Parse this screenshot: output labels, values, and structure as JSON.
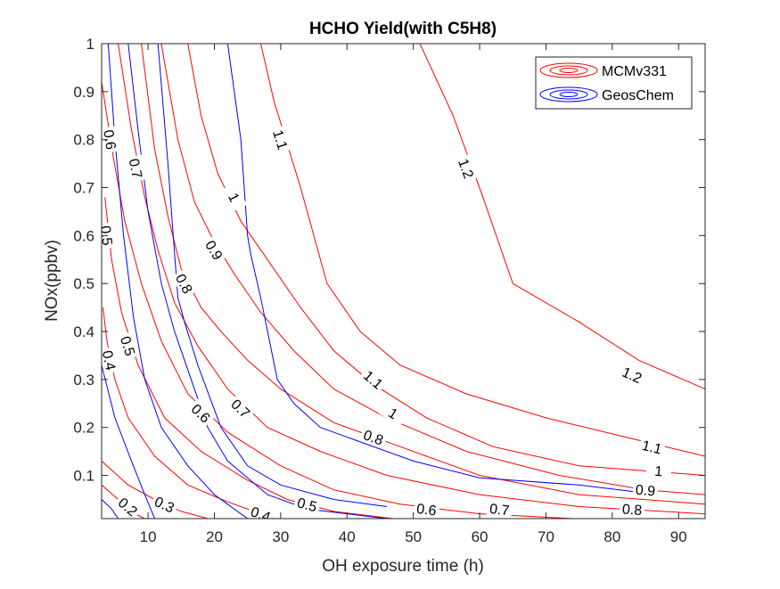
{
  "chart_data": {
    "type": "contour",
    "title": "HCHO Yield(with C5H8)",
    "xlabel": "OH exposure time (h)",
    "ylabel": "NOx(ppbv)",
    "xlim": [
      3,
      94
    ],
    "ylim": [
      0.01,
      1.0
    ],
    "xticks": [
      10,
      20,
      30,
      40,
      50,
      60,
      70,
      80,
      90
    ],
    "yticks": [
      0.1,
      0.2,
      0.3,
      0.4,
      0.5,
      0.6,
      0.7,
      0.8,
      0.9,
      1
    ],
    "yticklabels": [
      "0.1",
      "0.2",
      "0.3",
      "0.4",
      "0.5",
      "0.6",
      "0.7",
      "0.8",
      "0.9",
      "1"
    ],
    "grid": false,
    "legend": {
      "placement": "top-right",
      "entries": [
        "MCMv331",
        "GeosChem"
      ]
    },
    "series": [
      {
        "name": "MCMv331",
        "color": "#ff0000",
        "contours": [
          {
            "level": "0.2",
            "points": [
              [
                3.0,
                0.08
              ],
              [
                5.5,
                0.05
              ],
              [
                8.0,
                0.02
              ],
              [
                9.5,
                0.01
              ]
            ],
            "labels": [
              [
                7.0,
                0.035
              ]
            ]
          },
          {
            "level": "0.3",
            "points": [
              [
                3.0,
                0.13
              ],
              [
                7.0,
                0.08
              ],
              [
                11.0,
                0.05
              ],
              [
                15.0,
                0.025
              ],
              [
                19.0,
                0.01
              ]
            ],
            "labels": [
              [
                12.5,
                0.04
              ]
            ]
          },
          {
            "level": "0.4",
            "points": [
              [
                3.2,
                0.45
              ],
              [
                3.8,
                0.38
              ],
              [
                5.0,
                0.3
              ],
              [
                7.0,
                0.22
              ],
              [
                11.0,
                0.14
              ],
              [
                16.0,
                0.08
              ],
              [
                22.0,
                0.045
              ],
              [
                26.0,
                0.025
              ],
              [
                29.0,
                0.01
              ]
            ],
            "labels": [
              [
                4.2,
                0.34
              ],
              [
                27.0,
                0.02
              ]
            ]
          },
          {
            "level": "0.5",
            "points": [
              [
                3.5,
                0.68
              ],
              [
                4.5,
                0.55
              ],
              [
                6.0,
                0.44
              ],
              [
                8.5,
                0.33
              ],
              [
                12.5,
                0.22
              ],
              [
                18.0,
                0.15
              ],
              [
                25.0,
                0.09
              ],
              [
                31.0,
                0.05
              ],
              [
                38.0,
                0.025
              ],
              [
                47.0,
                0.01
              ]
            ],
            "labels": [
              [
                3.8,
                0.6
              ],
              [
                7.0,
                0.37
              ],
              [
                34.0,
                0.04
              ]
            ]
          },
          {
            "level": "0.6",
            "points": [
              [
                3.0,
                0.92
              ],
              [
                4.8,
                0.76
              ],
              [
                6.5,
                0.63
              ],
              [
                9.0,
                0.5
              ],
              [
                12.0,
                0.38
              ],
              [
                16.0,
                0.27
              ],
              [
                22.0,
                0.19
              ],
              [
                30.0,
                0.12
              ],
              [
                38.0,
                0.07
              ],
              [
                48.0,
                0.04
              ],
              [
                60.0,
                0.02
              ],
              [
                74.0,
                0.01
              ]
            ],
            "labels": [
              [
                4.3,
                0.8
              ],
              [
                18.0,
                0.23
              ],
              [
                52.0,
                0.03
              ]
            ]
          },
          {
            "level": "0.7",
            "points": [
              [
                5.5,
                1.0
              ],
              [
                7.5,
                0.82
              ],
              [
                9.5,
                0.68
              ],
              [
                11.5,
                0.57
              ],
              [
                14.0,
                0.46
              ],
              [
                17.5,
                0.37
              ],
              [
                22.0,
                0.28
              ],
              [
                28.0,
                0.2
              ],
              [
                36.0,
                0.15
              ],
              [
                46.0,
                0.1
              ],
              [
                60.0,
                0.06
              ],
              [
                75.0,
                0.035
              ],
              [
                94.0,
                0.02
              ]
            ],
            "labels": [
              [
                8.2,
                0.74
              ],
              [
                24.0,
                0.24
              ],
              [
                63.0,
                0.03
              ]
            ]
          },
          {
            "level": "0.8",
            "points": [
              [
                9.0,
                1.0
              ],
              [
                11.0,
                0.78
              ],
              [
                13.0,
                0.64
              ],
              [
                15.0,
                0.53
              ],
              [
                18.0,
                0.45
              ],
              [
                21.0,
                0.4
              ],
              [
                25.0,
                0.34
              ],
              [
                30.0,
                0.28
              ],
              [
                38.0,
                0.21
              ],
              [
                48.0,
                0.16
              ],
              [
                60.0,
                0.1
              ],
              [
                75.0,
                0.06
              ],
              [
                94.0,
                0.04
              ]
            ],
            "labels": [
              [
                15.5,
                0.5
              ],
              [
                44.0,
                0.18
              ],
              [
                83.0,
                0.03
              ]
            ]
          },
          {
            "level": "0.9",
            "points": [
              [
                12.0,
                1.0
              ],
              [
                14.5,
                0.8
              ],
              [
                17.0,
                0.67
              ],
              [
                19.5,
                0.6
              ],
              [
                23.0,
                0.52
              ],
              [
                27.0,
                0.44
              ],
              [
                32.0,
                0.36
              ],
              [
                38.0,
                0.28
              ],
              [
                46.0,
                0.22
              ],
              [
                58.0,
                0.15
              ],
              [
                72.0,
                0.1
              ],
              [
                85.0,
                0.07
              ],
              [
                94.0,
                0.06
              ]
            ],
            "labels": [
              [
                20.0,
                0.57
              ],
              [
                85.0,
                0.07
              ]
            ]
          },
          {
            "level": "1",
            "points": [
              [
                16.0,
                1.0
              ],
              [
                18.0,
                0.85
              ],
              [
                20.5,
                0.73
              ],
              [
                24.0,
                0.63
              ],
              [
                28.0,
                0.55
              ],
              [
                33.0,
                0.45
              ],
              [
                38.0,
                0.36
              ],
              [
                44.0,
                0.29
              ],
              [
                52.0,
                0.22
              ],
              [
                62.0,
                0.16
              ],
              [
                75.0,
                0.12
              ],
              [
                94.0,
                0.1
              ]
            ],
            "labels": [
              [
                23.0,
                0.68
              ],
              [
                47.0,
                0.23
              ],
              [
                87.0,
                0.11
              ]
            ]
          },
          {
            "level": "1.1",
            "points": [
              [
                27.0,
                1.0
              ],
              [
                29.0,
                0.88
              ],
              [
                33.0,
                0.7
              ],
              [
                37.0,
                0.5
              ],
              [
                42.0,
                0.4
              ],
              [
                48.0,
                0.33
              ],
              [
                58.0,
                0.27
              ],
              [
                70.0,
                0.22
              ],
              [
                82.0,
                0.18
              ],
              [
                94.0,
                0.14
              ]
            ],
            "labels": [
              [
                30.0,
                0.8
              ],
              [
                44.0,
                0.3
              ],
              [
                86.0,
                0.16
              ]
            ]
          },
          {
            "level": "1.2",
            "points": [
              [
                51.0,
                1.0
              ],
              [
                56.0,
                0.85
              ],
              [
                60.5,
                0.68
              ],
              [
                65.0,
                0.5
              ],
              [
                75.0,
                0.42
              ],
              [
                84.0,
                0.34
              ],
              [
                94.0,
                0.28
              ]
            ],
            "labels": [
              [
                58.0,
                0.74
              ],
              [
                83.0,
                0.31
              ]
            ]
          }
        ]
      },
      {
        "name": "GeosChem",
        "color": "#0000ff",
        "contours": [
          {
            "level": "0.2",
            "points": [
              [
                3.0,
                0.05
              ],
              [
                4.5,
                0.03
              ],
              [
                5.5,
                0.01
              ]
            ],
            "labels": []
          },
          {
            "level": "0.3",
            "points": [
              [
                3.0,
                0.33
              ],
              [
                5.0,
                0.22
              ],
              [
                7.5,
                0.13
              ],
              [
                9.5,
                0.06
              ],
              [
                11.0,
                0.01
              ]
            ],
            "labels": []
          },
          {
            "level": "0.4",
            "points": [
              [
                4.0,
                1.0
              ],
              [
                5.0,
                0.8
              ],
              [
                6.3,
                0.6
              ],
              [
                7.8,
                0.43
              ],
              [
                9.5,
                0.3
              ],
              [
                12.0,
                0.2
              ],
              [
                16.0,
                0.12
              ],
              [
                20.0,
                0.06
              ],
              [
                25.0,
                0.01
              ]
            ],
            "labels": []
          },
          {
            "level": "0.5",
            "points": [
              [
                7.0,
                1.0
              ],
              [
                8.5,
                0.82
              ],
              [
                10.0,
                0.65
              ],
              [
                12.0,
                0.5
              ],
              [
                14.0,
                0.4
              ],
              [
                16.0,
                0.32
              ],
              [
                19.0,
                0.2
              ],
              [
                22.0,
                0.13
              ],
              [
                28.0,
                0.06
              ],
              [
                34.0,
                0.03
              ],
              [
                46.0,
                0.01
              ]
            ],
            "labels": []
          },
          {
            "level": "0.8",
            "points": [
              [
                11.5,
                1.0
              ],
              [
                13.0,
                0.75
              ],
              [
                13.8,
                0.6
              ],
              [
                14.5,
                0.47
              ],
              [
                15.5,
                0.42
              ],
              [
                17.5,
                0.33
              ],
              [
                21.0,
                0.2
              ],
              [
                25.0,
                0.12
              ],
              [
                30.0,
                0.08
              ],
              [
                38.0,
                0.05
              ],
              [
                46.0,
                0.035
              ]
            ],
            "labels": []
          },
          {
            "level": "0.8",
            "points": [
              [
                22.0,
                1.0
              ],
              [
                24.0,
                0.8
              ],
              [
                25.0,
                0.6
              ],
              [
                25.5,
                0.56
              ],
              [
                27.0,
                0.47
              ],
              [
                29.5,
                0.3
              ],
              [
                32.0,
                0.25
              ],
              [
                36.0,
                0.2
              ],
              [
                42.0,
                0.17
              ],
              [
                50.0,
                0.13
              ],
              [
                60.0,
                0.095
              ],
              [
                75.0,
                0.08
              ],
              [
                84.0,
                0.065
              ],
              [
                86.0,
                0.06
              ]
            ],
            "labels": []
          }
        ]
      }
    ]
  }
}
